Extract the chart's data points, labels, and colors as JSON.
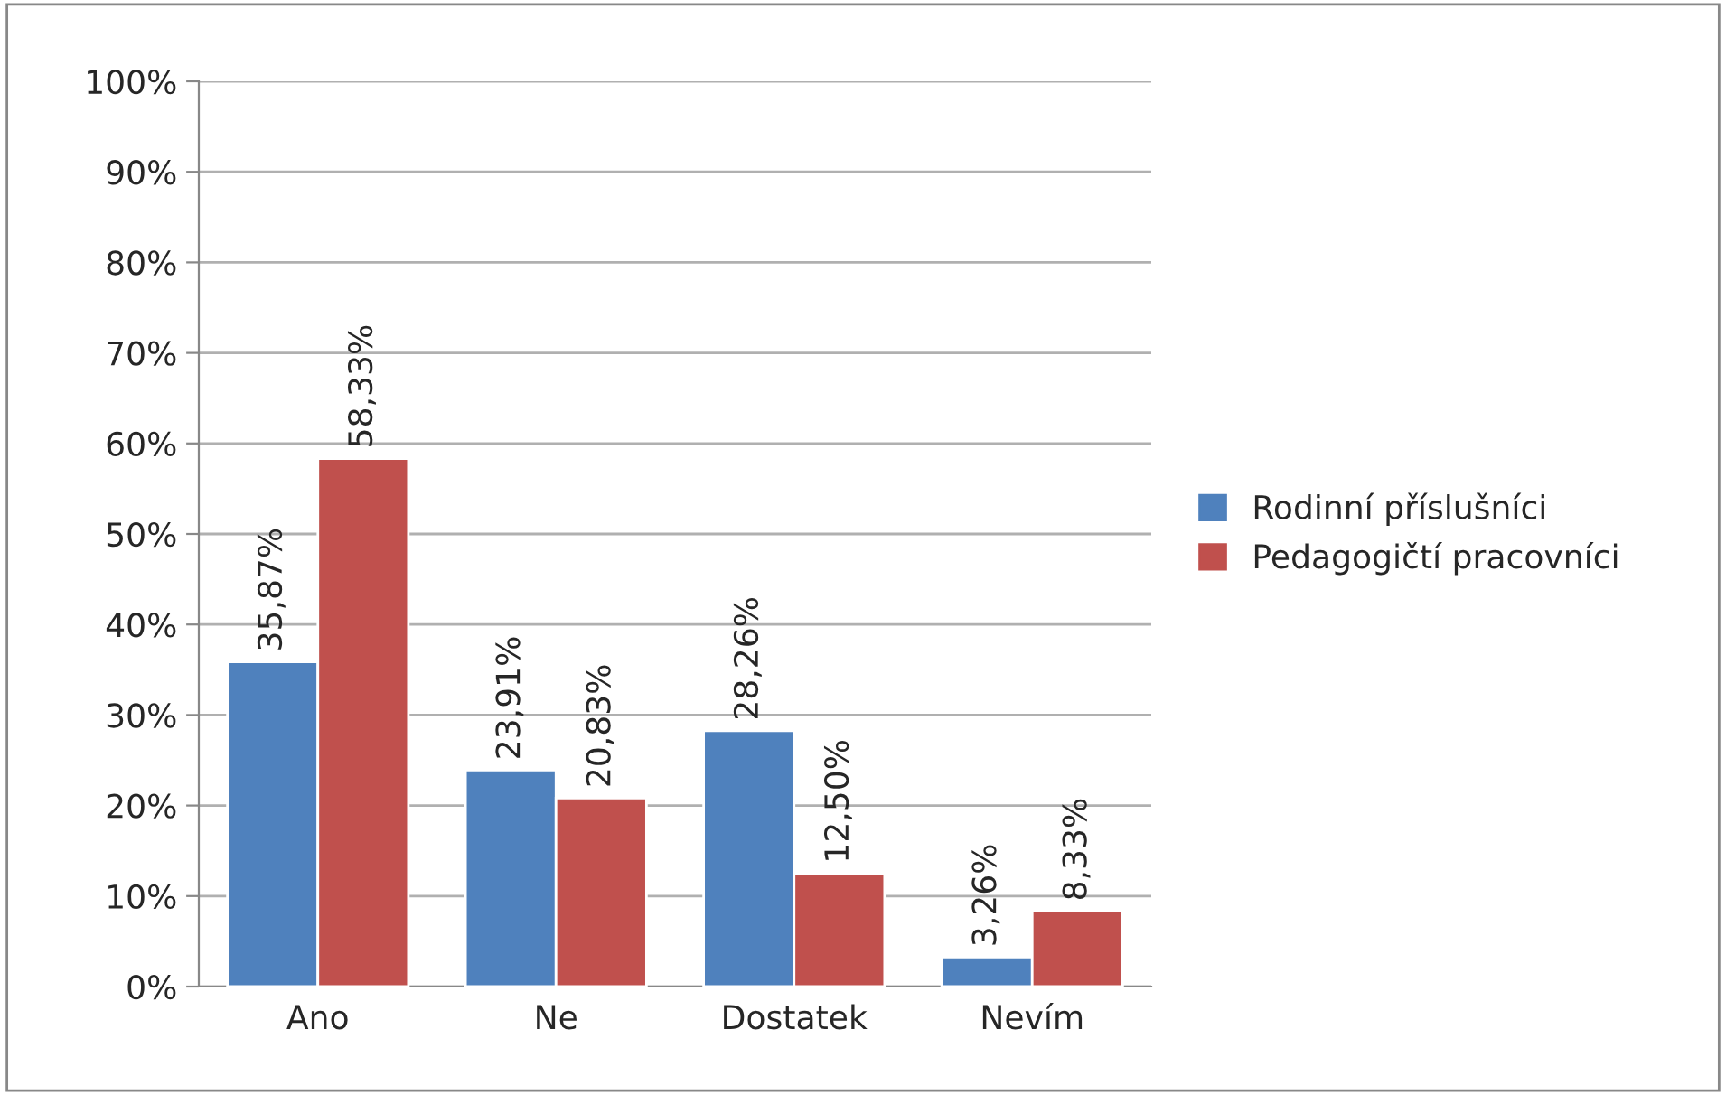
{
  "chart_data": {
    "type": "bar",
    "categories": [
      "Ano",
      "Ne",
      "Dostatek",
      "Nevím"
    ],
    "series": [
      {
        "name": "Rodinní příslušníci",
        "color": "#4f81bd",
        "values": [
          35.87,
          23.91,
          28.26,
          3.26
        ],
        "value_labels": [
          "35,87%",
          "23,91%",
          "28,26%",
          "3,26%"
        ]
      },
      {
        "name": "Pedagogičtí pracovníci",
        "color": "#c0504d",
        "values": [
          58.33,
          20.83,
          12.5,
          8.33
        ],
        "value_labels": [
          "58,33%",
          "20,83%",
          "12,50%",
          "8,33%"
        ]
      }
    ],
    "ylim": [
      0,
      100
    ],
    "yticks": [
      {
        "value": 0,
        "label": "0%"
      },
      {
        "value": 10,
        "label": "10%"
      },
      {
        "value": 20,
        "label": "20%"
      },
      {
        "value": 30,
        "label": "30%"
      },
      {
        "value": 40,
        "label": "40%"
      },
      {
        "value": 50,
        "label": "50%"
      },
      {
        "value": 60,
        "label": "60%"
      },
      {
        "value": 70,
        "label": "70%"
      },
      {
        "value": 80,
        "label": "80%"
      },
      {
        "value": 90,
        "label": "90%"
      },
      {
        "value": 100,
        "label": "100%"
      }
    ],
    "grid": "y",
    "legend": "right"
  }
}
